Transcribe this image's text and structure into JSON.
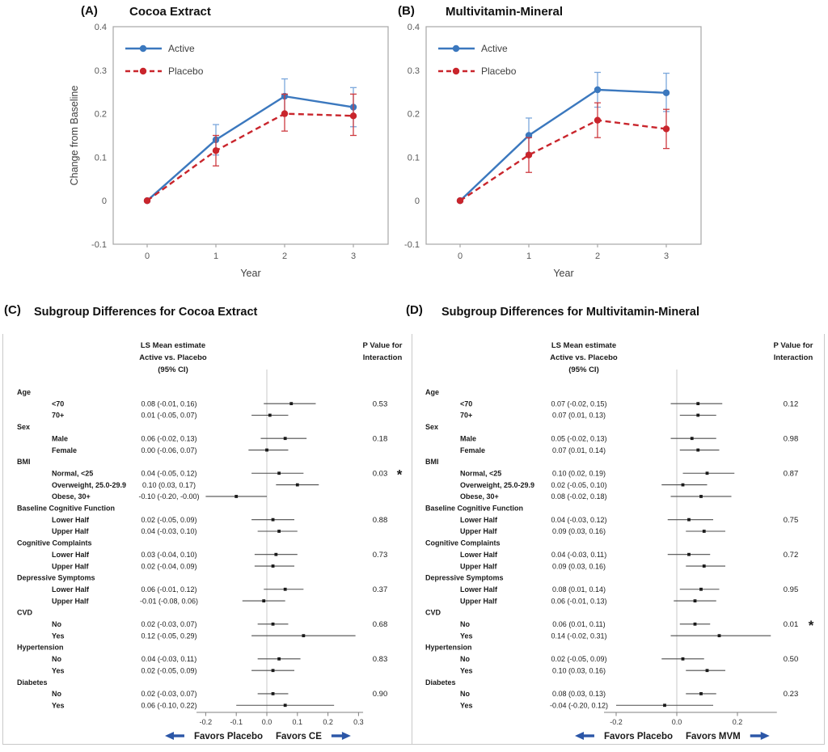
{
  "colors": {
    "active_blue": "#3b78be",
    "placebo_red": "#c9252c",
    "err_blue": "#7ba7db",
    "err_red": "#ce3a40",
    "arrow_blue": "#2b56a7",
    "axis_gray": "#a6a6a6",
    "tick_text": "#595959",
    "zero_line": "#c8c8c8",
    "ci_line": "#4d4d4d",
    "dot": "#1a1a1a"
  },
  "chart_data": [
    {
      "type": "line",
      "panel_label": "(A)",
      "title": "Cocoa Extract",
      "xlabel": "Year",
      "ylabel": "Change from Baseline",
      "x": [
        "0",
        "1",
        "2",
        "3"
      ],
      "ylim": [
        -0.1,
        0.4
      ],
      "yticks": [
        {
          "v": 0.4,
          "label": "0.4"
        },
        {
          "v": 0.3,
          "label": "0.3"
        },
        {
          "v": 0.2,
          "label": "0.2"
        },
        {
          "v": 0.1,
          "label": "0.1"
        },
        {
          "v": 0,
          "label": "0"
        },
        {
          "v": -0.1,
          "label": "-0.1"
        }
      ],
      "series": [
        {
          "name": "Active",
          "dash": false,
          "colorKey": "active_blue",
          "errKey": "err_blue",
          "values": [
            0,
            0.14,
            0.24,
            0.215
          ],
          "err_lo": [
            null,
            0.105,
            0.2,
            0.17
          ],
          "err_hi": [
            null,
            0.175,
            0.28,
            0.26
          ]
        },
        {
          "name": "Placebo",
          "dash": true,
          "colorKey": "placebo_red",
          "errKey": "err_red",
          "values": [
            0,
            0.115,
            0.2,
            0.195
          ],
          "err_lo": [
            null,
            0.08,
            0.16,
            0.15
          ],
          "err_hi": [
            null,
            0.15,
            0.245,
            0.245
          ]
        }
      ]
    },
    {
      "type": "line",
      "panel_label": "(B)",
      "title": "Multivitamin-Mineral",
      "xlabel": "Year",
      "ylabel": "",
      "x": [
        "0",
        "1",
        "2",
        "3"
      ],
      "ylim": [
        -0.1,
        0.4
      ],
      "yticks": [
        {
          "v": 0.4,
          "label": "0.4"
        },
        {
          "v": 0.3,
          "label": "0.3"
        },
        {
          "v": 0.2,
          "label": "0.2"
        },
        {
          "v": 0.1,
          "label": "0.1"
        },
        {
          "v": 0,
          "label": "0"
        },
        {
          "v": -0.1,
          "label": "-0.1"
        }
      ],
      "series": [
        {
          "name": "Active",
          "dash": false,
          "colorKey": "active_blue",
          "errKey": "err_blue",
          "values": [
            0,
            0.15,
            0.255,
            0.248
          ],
          "err_lo": [
            null,
            0.11,
            0.215,
            0.205
          ],
          "err_hi": [
            null,
            0.19,
            0.295,
            0.293
          ]
        },
        {
          "name": "Placebo",
          "dash": true,
          "colorKey": "placebo_red",
          "errKey": "err_red",
          "values": [
            0,
            0.105,
            0.185,
            0.165
          ],
          "err_lo": [
            null,
            0.065,
            0.145,
            0.12
          ],
          "err_hi": [
            null,
            0.145,
            0.225,
            0.21
          ]
        }
      ]
    },
    {
      "type": "forest",
      "panel_label": "(C)",
      "title": "Subgroup Differences for Cocoa Extract",
      "headers": {
        "estimate": [
          "LS Mean estimate",
          "Active vs. Placebo",
          "(95% CI)"
        ],
        "p": [
          "P Value for",
          "Interaction"
        ]
      },
      "xticks": [
        {
          "v": -0.2,
          "label": "-0.2"
        },
        {
          "v": -0.1,
          "label": "-0.1"
        },
        {
          "v": 0,
          "label": "0.0"
        },
        {
          "v": 0.1,
          "label": "0.1"
        },
        {
          "v": 0.2,
          "label": "0.2"
        },
        {
          "v": 0.3,
          "label": "0.3"
        }
      ],
      "favors_left": "Favors Placebo",
      "favors_right": "Favors CE",
      "groups": [
        {
          "label": "Age",
          "p": "0.53",
          "sig": false,
          "rows": [
            {
              "label": "<70",
              "text": "0.08 (-0.01, 0.16)",
              "est": 0.08,
              "lo": -0.01,
              "hi": 0.16
            },
            {
              "label": "70+",
              "text": "0.01 (-0.05, 0.07)",
              "est": 0.01,
              "lo": -0.05,
              "hi": 0.07
            }
          ]
        },
        {
          "label": "Sex",
          "p": "0.18",
          "sig": false,
          "rows": [
            {
              "label": "Male",
              "text": "0.06 (-0.02, 0.13)",
              "est": 0.06,
              "lo": -0.02,
              "hi": 0.13
            },
            {
              "label": "Female",
              "text": "0.00 (-0.06, 0.07)",
              "est": 0.0,
              "lo": -0.06,
              "hi": 0.07
            }
          ]
        },
        {
          "label": "BMI",
          "p": "0.03",
          "sig": true,
          "rows": [
            {
              "label": "Normal, <25",
              "text": "0.04 (-0.05, 0.12)",
              "est": 0.04,
              "lo": -0.05,
              "hi": 0.12
            },
            {
              "label": "Overweight, 25.0-29.9",
              "text": "0.10 (0.03, 0.17)",
              "est": 0.1,
              "lo": 0.03,
              "hi": 0.17
            },
            {
              "label": "Obese, 30+",
              "text": "-0.10 (-0.20, -0.00)",
              "est": -0.1,
              "lo": -0.2,
              "hi": 0.0
            }
          ]
        },
        {
          "label": "Baseline Cognitive Function",
          "p": "0.88",
          "sig": false,
          "rows": [
            {
              "label": "Lower Half",
              "text": "0.02 (-0.05, 0.09)",
              "est": 0.02,
              "lo": -0.05,
              "hi": 0.09
            },
            {
              "label": "Upper Half",
              "text": "0.04 (-0.03, 0.10)",
              "est": 0.04,
              "lo": -0.03,
              "hi": 0.1
            }
          ]
        },
        {
          "label": "Cognitive Complaints",
          "p": "0.73",
          "sig": false,
          "rows": [
            {
              "label": "Lower Half",
              "text": "0.03 (-0.04, 0.10)",
              "est": 0.03,
              "lo": -0.04,
              "hi": 0.1
            },
            {
              "label": "Upper Half",
              "text": "0.02 (-0.04, 0.09)",
              "est": 0.02,
              "lo": -0.04,
              "hi": 0.09
            }
          ]
        },
        {
          "label": "Depressive Symptoms",
          "p": "0.37",
          "sig": false,
          "rows": [
            {
              "label": "Lower Half",
              "text": "0.06 (-0.01, 0.12)",
              "est": 0.06,
              "lo": -0.01,
              "hi": 0.12
            },
            {
              "label": "Upper Half",
              "text": "-0.01 (-0.08, 0.06)",
              "est": -0.01,
              "lo": -0.08,
              "hi": 0.06
            }
          ]
        },
        {
          "label": "CVD",
          "p": "0.68",
          "sig": false,
          "rows": [
            {
              "label": "No",
              "text": "0.02 (-0.03, 0.07)",
              "est": 0.02,
              "lo": -0.03,
              "hi": 0.07
            },
            {
              "label": "Yes",
              "text": "0.12 (-0.05, 0.29)",
              "est": 0.12,
              "lo": -0.05,
              "hi": 0.29
            }
          ]
        },
        {
          "label": "Hypertension",
          "p": "0.83",
          "sig": false,
          "rows": [
            {
              "label": "No",
              "text": "0.04 (-0.03, 0.11)",
              "est": 0.04,
              "lo": -0.03,
              "hi": 0.11
            },
            {
              "label": "Yes",
              "text": "0.02 (-0.05, 0.09)",
              "est": 0.02,
              "lo": -0.05,
              "hi": 0.09
            }
          ]
        },
        {
          "label": "Diabetes",
          "p": "0.90",
          "sig": false,
          "rows": [
            {
              "label": "No",
              "text": "0.02 (-0.03, 0.07)",
              "est": 0.02,
              "lo": -0.03,
              "hi": 0.07
            },
            {
              "label": "Yes",
              "text": "0.06 (-0.10, 0.22)",
              "est": 0.06,
              "lo": -0.1,
              "hi": 0.22
            }
          ]
        }
      ]
    },
    {
      "type": "forest",
      "panel_label": "(D)",
      "title": "Subgroup Differences for Multivitamin-Mineral",
      "headers": {
        "estimate": [
          "LS Mean estimate",
          "Active vs. Placebo",
          "(95% CI)"
        ],
        "p": [
          "P Value for",
          "Interaction"
        ]
      },
      "xticks": [
        {
          "v": -0.2,
          "label": "-0.2"
        },
        {
          "v": 0,
          "label": "0.0"
        },
        {
          "v": 0.2,
          "label": "0.2"
        }
      ],
      "favors_left": "Favors Placebo",
      "favors_right": "Favors MVM",
      "groups": [
        {
          "label": "Age",
          "p": "0.12",
          "sig": false,
          "rows": [
            {
              "label": "<70",
              "text": "0.07 (-0.02, 0.15)",
              "est": 0.07,
              "lo": -0.02,
              "hi": 0.15
            },
            {
              "label": "70+",
              "text": "0.07 (0.01, 0.13)",
              "est": 0.07,
              "lo": 0.01,
              "hi": 0.13
            }
          ]
        },
        {
          "label": "Sex",
          "p": "0.98",
          "sig": false,
          "rows": [
            {
              "label": "Male",
              "text": "0.05 (-0.02, 0.13)",
              "est": 0.05,
              "lo": -0.02,
              "hi": 0.13
            },
            {
              "label": "Female",
              "text": "0.07 (0.01, 0.14)",
              "est": 0.07,
              "lo": 0.01,
              "hi": 0.14
            }
          ]
        },
        {
          "label": "BMI",
          "p": "0.87",
          "sig": false,
          "rows": [
            {
              "label": "Normal, <25",
              "text": "0.10 (0.02, 0.19)",
              "est": 0.1,
              "lo": 0.02,
              "hi": 0.19
            },
            {
              "label": "Overweight, 25.0-29.9",
              "text": "0.02 (-0.05, 0.10)",
              "est": 0.02,
              "lo": -0.05,
              "hi": 0.1
            },
            {
              "label": "Obese, 30+",
              "text": "0.08 (-0.02, 0.18)",
              "est": 0.08,
              "lo": -0.02,
              "hi": 0.18
            }
          ]
        },
        {
          "label": "Baseline Cognitive Function",
          "p": "0.75",
          "sig": false,
          "rows": [
            {
              "label": "Lower Half",
              "text": "0.04 (-0.03, 0.12)",
              "est": 0.04,
              "lo": -0.03,
              "hi": 0.12
            },
            {
              "label": "Upper Half",
              "text": "0.09 (0.03, 0.16)",
              "est": 0.09,
              "lo": 0.03,
              "hi": 0.16
            }
          ]
        },
        {
          "label": "Cognitive Complaints",
          "p": "0.72",
          "sig": false,
          "rows": [
            {
              "label": "Lower Half",
              "text": "0.04 (-0.03, 0.11)",
              "est": 0.04,
              "lo": -0.03,
              "hi": 0.11
            },
            {
              "label": "Upper Half",
              "text": "0.09 (0.03, 0.16)",
              "est": 0.09,
              "lo": 0.03,
              "hi": 0.16
            }
          ]
        },
        {
          "label": "Depressive Symptoms",
          "p": "0.95",
          "sig": false,
          "rows": [
            {
              "label": "Lower Half",
              "text": "0.08 (0.01, 0.14)",
              "est": 0.08,
              "lo": 0.01,
              "hi": 0.14
            },
            {
              "label": "Upper Half",
              "text": "0.06 (-0.01, 0.13)",
              "est": 0.06,
              "lo": -0.01,
              "hi": 0.13
            }
          ]
        },
        {
          "label": "CVD",
          "p": "0.01",
          "sig": true,
          "rows": [
            {
              "label": "No",
              "text": "0.06 (0.01, 0.11)",
              "est": 0.06,
              "lo": 0.01,
              "hi": 0.11
            },
            {
              "label": "Yes",
              "text": "0.14 (-0.02, 0.31)",
              "est": 0.14,
              "lo": -0.02,
              "hi": 0.31
            }
          ]
        },
        {
          "label": "Hypertension",
          "p": "0.50",
          "sig": false,
          "rows": [
            {
              "label": "No",
              "text": "0.02 (-0.05, 0.09)",
              "est": 0.02,
              "lo": -0.05,
              "hi": 0.09
            },
            {
              "label": "Yes",
              "text": "0.10 (0.03, 0.16)",
              "est": 0.1,
              "lo": 0.03,
              "hi": 0.16
            }
          ]
        },
        {
          "label": "Diabetes",
          "p": "0.23",
          "sig": false,
          "rows": [
            {
              "label": "No",
              "text": "0.08 (0.03, 0.13)",
              "est": 0.08,
              "lo": 0.03,
              "hi": 0.13
            },
            {
              "label": "Yes",
              "text": "-0.04 (-0.20, 0.12)",
              "est": -0.04,
              "lo": -0.2,
              "hi": 0.12
            }
          ]
        }
      ]
    }
  ]
}
